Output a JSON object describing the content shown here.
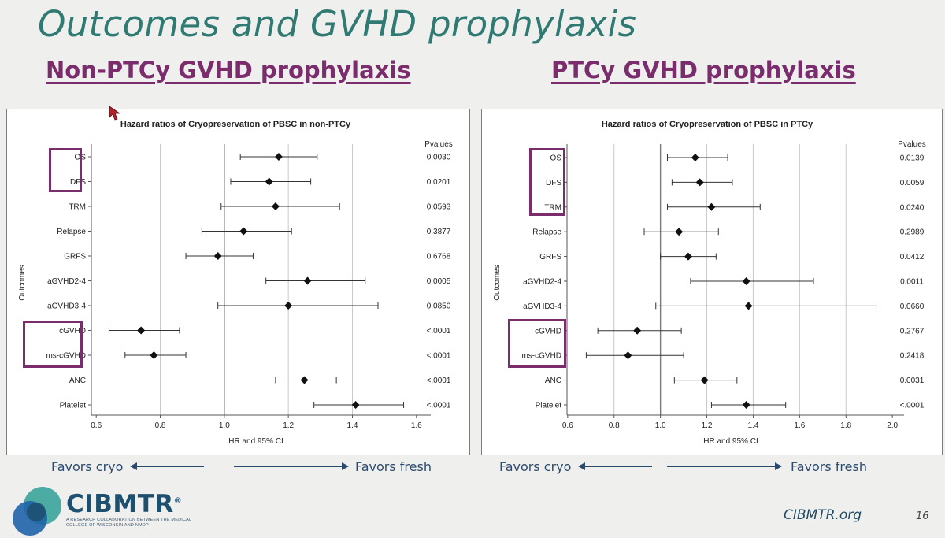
{
  "slide": {
    "title": "Outcomes and GVHD prophylaxis",
    "left_heading": "Non-PTCy GVHD prophylaxis",
    "right_heading": "PTCy GVHD prophylaxis",
    "favors_cryo": "Favors cryo",
    "favors_fresh": "Favors fresh",
    "footer_url": "CIBMTR.org",
    "page_number": "16",
    "logo_name": "CIBMTR",
    "logo_registered": "®",
    "logo_tagline": "A RESEARCH COLLABORATION BETWEEN THE MEDICAL COLLEGE OF WISCONSIN AND NMDP",
    "colors": {
      "title": "#2f7a72",
      "heading": "#7b2c6c",
      "highlight": "#7b2c6c",
      "arrow": "#2a4a6e"
    }
  },
  "chart_data": [
    {
      "type": "scatter",
      "subtype": "forest-plot",
      "title": "Hazard ratios of Cryopreservation of PBSC in non-PTCy",
      "xlabel": "HR and 95% CI",
      "ylabel": "Outcomes",
      "pvalues_header": "Pvalues",
      "xlim": [
        0.57,
        1.63
      ],
      "xticks": [
        0.6,
        0.8,
        1.0,
        1.2,
        1.4,
        1.6
      ],
      "xtick_labels": [
        "0.6",
        "0.8",
        "1.0",
        "1.2",
        "1.4",
        "1.6"
      ],
      "gridlines": [
        0.8,
        1.2,
        1.4
      ],
      "reference_line": 1.0,
      "categories": [
        "OS",
        "DFS",
        "TRM",
        "Relapse",
        "GRFS",
        "aGVHD2-4",
        "aGVHD3-4",
        "cGVHD",
        "ms-cGVHD",
        "ANC",
        "Platelet"
      ],
      "hr": [
        1.17,
        1.14,
        1.16,
        1.06,
        0.98,
        1.26,
        1.2,
        0.74,
        0.78,
        1.25,
        1.41
      ],
      "lower": [
        1.05,
        1.02,
        0.99,
        0.93,
        0.88,
        1.13,
        0.98,
        0.64,
        0.69,
        1.16,
        1.28
      ],
      "upper": [
        1.29,
        1.27,
        1.36,
        1.21,
        1.09,
        1.44,
        1.48,
        0.86,
        0.88,
        1.35,
        1.56
      ],
      "pvalues": [
        "0.0030",
        "0.0201",
        "0.0593",
        "0.3877",
        "0.6768",
        "0.0005",
        "0.0850",
        "<.0001",
        "<.0001",
        "<.0001",
        "<.0001"
      ],
      "highlight_groups": [
        [
          "OS",
          "DFS"
        ],
        [
          "cGVHD",
          "ms-cGVHD"
        ]
      ]
    },
    {
      "type": "scatter",
      "subtype": "forest-plot",
      "title": "Hazard ratios of Cryopreservation of PBSC in PTCy",
      "xlabel": "HR and 95% CI",
      "ylabel": "Outcomes",
      "pvalues_header": "Pvalues",
      "xlim": [
        0.57,
        2.03
      ],
      "xticks": [
        0.6,
        0.8,
        1.0,
        1.2,
        1.4,
        1.6,
        1.8,
        2.0
      ],
      "xtick_labels": [
        "0.6",
        "0.8",
        "1.0",
        "1.2",
        "1.4",
        "1.6",
        "1.8",
        "2.0"
      ],
      "gridlines": [
        0.8,
        1.2,
        1.4,
        1.6,
        1.8
      ],
      "reference_line": 1.0,
      "categories": [
        "OS",
        "DFS",
        "TRM",
        "Relapse",
        "GRFS",
        "aGVHD2-4",
        "aGVHD3-4",
        "cGVHD",
        "ms-cGVHD",
        "ANC",
        "Platelet"
      ],
      "hr": [
        1.15,
        1.17,
        1.22,
        1.08,
        1.12,
        1.37,
        1.38,
        0.9,
        0.86,
        1.19,
        1.37
      ],
      "lower": [
        1.03,
        1.05,
        1.03,
        0.93,
        1.0,
        1.13,
        0.98,
        0.73,
        0.68,
        1.06,
        1.22
      ],
      "upper": [
        1.29,
        1.31,
        1.43,
        1.25,
        1.24,
        1.66,
        1.93,
        1.09,
        1.1,
        1.33,
        1.54
      ],
      "pvalues": [
        "0.0139",
        "0.0059",
        "0.0240",
        "0.2989",
        "0.0412",
        "0.0011",
        "0.0660",
        "0.2767",
        "0.2418",
        "0.0031",
        "<.0001"
      ],
      "highlight_groups": [
        [
          "OS",
          "DFS",
          "TRM"
        ],
        [
          "cGVHD",
          "ms-cGVHD"
        ]
      ]
    }
  ]
}
